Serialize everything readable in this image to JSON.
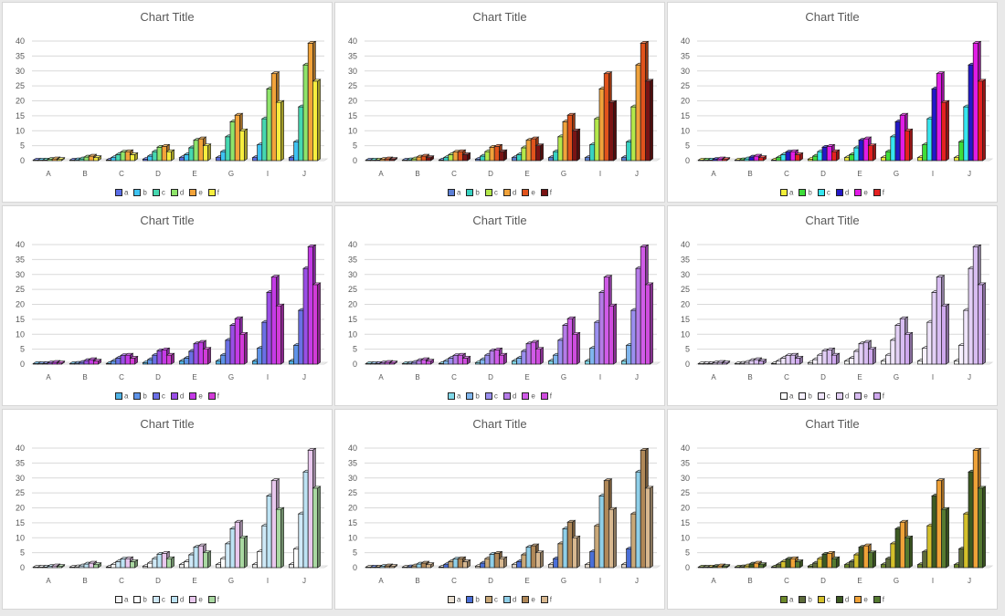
{
  "chart_data": [
    {
      "type": "bar",
      "title": "Chart Title",
      "categories": [
        "A",
        "B",
        "C",
        "D",
        "E",
        "G",
        "I",
        "J"
      ],
      "ylim": [
        0,
        40
      ],
      "yticks": [
        0,
        5,
        10,
        15,
        20,
        25,
        30,
        35,
        40
      ],
      "grid": true,
      "legend": "bottom",
      "series": [
        {
          "name": "a",
          "values": [
            0,
            0,
            0.2,
            0.5,
            1,
            1,
            1,
            1
          ]
        },
        {
          "name": "b",
          "values": [
            0.1,
            0.3,
            1,
            1.5,
            2,
            3,
            5.3,
            6.3
          ]
        },
        {
          "name": "c",
          "values": [
            0.2,
            0.6,
            2,
            3,
            4.3,
            8,
            14,
            18
          ]
        },
        {
          "name": "d",
          "values": [
            0.4,
            1.2,
            2.9,
            4.5,
            6.8,
            13,
            24,
            32
          ]
        },
        {
          "name": "e",
          "values": [
            0.6,
            1.5,
            3,
            4.8,
            7.3,
            15.2,
            29.1,
            39.3
          ]
        },
        {
          "name": "f",
          "values": [
            0.4,
            1,
            2,
            3,
            5,
            10,
            19.5,
            26.6
          ]
        }
      ],
      "colors": [
        "#5b6ee8",
        "#3ec3f2",
        "#46d8b0",
        "#8ee46a",
        "#f2a33a",
        "#f7ee3e"
      ]
    },
    {
      "type": "bar",
      "title": "Chart Title",
      "categories": [
        "A",
        "B",
        "C",
        "D",
        "E",
        "G",
        "I",
        "J"
      ],
      "ylim": [
        0,
        40
      ],
      "yticks": [
        0,
        5,
        10,
        15,
        20,
        25,
        30,
        35,
        40
      ],
      "grid": true,
      "legend": "bottom",
      "series": [
        {
          "name": "a",
          "values": [
            0,
            0,
            0.2,
            0.5,
            1,
            1,
            1,
            1
          ]
        },
        {
          "name": "b",
          "values": [
            0.1,
            0.3,
            1,
            1.5,
            2,
            3,
            5.3,
            6.3
          ]
        },
        {
          "name": "c",
          "values": [
            0.2,
            0.6,
            2,
            3,
            4.3,
            8,
            14,
            18
          ]
        },
        {
          "name": "d",
          "values": [
            0.4,
            1.2,
            2.9,
            4.5,
            6.8,
            13,
            24,
            32
          ]
        },
        {
          "name": "e",
          "values": [
            0.6,
            1.5,
            3,
            4.8,
            7.3,
            15.2,
            29.1,
            39.3
          ]
        },
        {
          "name": "f",
          "values": [
            0.4,
            1,
            2,
            3,
            5,
            10,
            19.5,
            26.6
          ]
        }
      ],
      "colors": [
        "#5b7fd6",
        "#37d2c2",
        "#b4e84a",
        "#f0a23a",
        "#e1531c",
        "#7a1414"
      ]
    },
    {
      "type": "bar",
      "title": "Chart Title",
      "categories": [
        "A",
        "B",
        "C",
        "D",
        "E",
        "G",
        "I",
        "J"
      ],
      "ylim": [
        0,
        40
      ],
      "yticks": [
        0,
        5,
        10,
        15,
        20,
        25,
        30,
        35,
        40
      ],
      "grid": true,
      "legend": "bottom",
      "series": [
        {
          "name": "a",
          "values": [
            0,
            0,
            0.2,
            0.5,
            1,
            1,
            1,
            1
          ]
        },
        {
          "name": "b",
          "values": [
            0.1,
            0.3,
            1,
            1.5,
            2,
            3,
            5.3,
            6.3
          ]
        },
        {
          "name": "c",
          "values": [
            0.2,
            0.6,
            2,
            3,
            4.3,
            8,
            14,
            18
          ]
        },
        {
          "name": "d",
          "values": [
            0.4,
            1.2,
            2.9,
            4.5,
            6.8,
            13,
            24,
            32
          ]
        },
        {
          "name": "e",
          "values": [
            0.6,
            1.5,
            3,
            4.8,
            7.3,
            15.2,
            29.1,
            39.3
          ]
        },
        {
          "name": "f",
          "values": [
            0.4,
            1,
            2,
            3,
            5,
            10,
            19.5,
            26.6
          ]
        }
      ],
      "colors": [
        "#f2ef3a",
        "#3edc3a",
        "#36e6f0",
        "#2318c8",
        "#e21be6",
        "#e52121"
      ]
    },
    {
      "type": "bar",
      "title": "Chart Title",
      "categories": [
        "A",
        "B",
        "C",
        "D",
        "E",
        "G",
        "I",
        "J"
      ],
      "ylim": [
        0,
        40
      ],
      "yticks": [
        0,
        5,
        10,
        15,
        20,
        25,
        30,
        35,
        40
      ],
      "grid": true,
      "legend": "bottom",
      "series": [
        {
          "name": "a",
          "values": [
            0,
            0,
            0.2,
            0.5,
            1,
            1,
            1,
            1
          ]
        },
        {
          "name": "b",
          "values": [
            0.1,
            0.3,
            1,
            1.5,
            2,
            3,
            5.3,
            6.3
          ]
        },
        {
          "name": "c",
          "values": [
            0.2,
            0.6,
            2,
            3,
            4.3,
            8,
            14,
            18
          ]
        },
        {
          "name": "d",
          "values": [
            0.4,
            1.2,
            2.9,
            4.5,
            6.8,
            13,
            24,
            32
          ]
        },
        {
          "name": "e",
          "values": [
            0.6,
            1.5,
            3,
            4.8,
            7.3,
            15.2,
            29.1,
            39.3
          ]
        },
        {
          "name": "f",
          "values": [
            0.4,
            1,
            2,
            3,
            5,
            10,
            19.5,
            26.6
          ]
        }
      ],
      "colors": [
        "#4fb3e6",
        "#5e93e8",
        "#6b6fe6",
        "#9a4ee6",
        "#c43ae6",
        "#d23bd8"
      ]
    },
    {
      "type": "bar",
      "title": "Chart Title",
      "categories": [
        "A",
        "B",
        "C",
        "D",
        "E",
        "G",
        "I",
        "J"
      ],
      "ylim": [
        0,
        40
      ],
      "yticks": [
        0,
        5,
        10,
        15,
        20,
        25,
        30,
        35,
        40
      ],
      "grid": true,
      "legend": "bottom",
      "series": [
        {
          "name": "a",
          "values": [
            0,
            0,
            0.2,
            0.5,
            1,
            1,
            1,
            1
          ]
        },
        {
          "name": "b",
          "values": [
            0.1,
            0.3,
            1,
            1.5,
            2,
            3,
            5.3,
            6.3
          ]
        },
        {
          "name": "c",
          "values": [
            0.2,
            0.6,
            2,
            3,
            4.3,
            8,
            14,
            18
          ]
        },
        {
          "name": "d",
          "values": [
            0.4,
            1.2,
            2.9,
            4.5,
            6.8,
            13,
            24,
            32
          ]
        },
        {
          "name": "e",
          "values": [
            0.6,
            1.5,
            3,
            4.8,
            7.3,
            15.2,
            29.1,
            39.3
          ]
        },
        {
          "name": "f",
          "values": [
            0.4,
            1,
            2,
            3,
            5,
            10,
            19.5,
            26.6
          ]
        }
      ],
      "colors": [
        "#7fd8e8",
        "#7fb6ee",
        "#9b8ff0",
        "#b57be8",
        "#d05be8",
        "#cf4cde"
      ]
    },
    {
      "type": "bar",
      "title": "Chart Title",
      "categories": [
        "A",
        "B",
        "C",
        "D",
        "E",
        "G",
        "I",
        "J"
      ],
      "ylim": [
        0,
        40
      ],
      "yticks": [
        0,
        5,
        10,
        15,
        20,
        25,
        30,
        35,
        40
      ],
      "grid": true,
      "legend": "bottom",
      "series": [
        {
          "name": "a",
          "values": [
            0,
            0,
            0.2,
            0.5,
            1,
            1,
            1,
            1
          ]
        },
        {
          "name": "b",
          "values": [
            0.1,
            0.3,
            1,
            1.5,
            2,
            3,
            5.3,
            6.3
          ]
        },
        {
          "name": "c",
          "values": [
            0.2,
            0.6,
            2,
            3,
            4.3,
            8,
            14,
            18
          ]
        },
        {
          "name": "d",
          "values": [
            0.4,
            1.2,
            2.9,
            4.5,
            6.8,
            13,
            24,
            32
          ]
        },
        {
          "name": "e",
          "values": [
            0.6,
            1.5,
            3,
            4.8,
            7.3,
            15.2,
            29.1,
            39.3
          ]
        },
        {
          "name": "f",
          "values": [
            0.4,
            1,
            2,
            3,
            5,
            10,
            19.5,
            26.6
          ]
        }
      ],
      "colors": [
        "#ffffff",
        "#f6f0ff",
        "#efe4fb",
        "#e3d0f6",
        "#d8bdf2",
        "#cfa8ee"
      ]
    },
    {
      "type": "bar",
      "title": "Chart Title",
      "categories": [
        "A",
        "B",
        "C",
        "D",
        "E",
        "G",
        "I",
        "J"
      ],
      "ylim": [
        0,
        40
      ],
      "yticks": [
        0,
        5,
        10,
        15,
        20,
        25,
        30,
        35,
        40
      ],
      "grid": true,
      "legend": "bottom",
      "series": [
        {
          "name": "a",
          "values": [
            0,
            0,
            0.2,
            0.5,
            1,
            1,
            1,
            1
          ]
        },
        {
          "name": "b",
          "values": [
            0.1,
            0.3,
            1,
            1.5,
            2,
            3,
            5.3,
            6.3
          ]
        },
        {
          "name": "c",
          "values": [
            0.2,
            0.6,
            2,
            3,
            4.3,
            8,
            14,
            18
          ]
        },
        {
          "name": "d",
          "values": [
            0.4,
            1.2,
            2.9,
            4.5,
            6.8,
            13,
            24,
            32
          ]
        },
        {
          "name": "e",
          "values": [
            0.6,
            1.5,
            3,
            4.8,
            7.3,
            15.2,
            29.1,
            39.3
          ]
        },
        {
          "name": "f",
          "values": [
            0.4,
            1,
            2,
            3,
            5,
            10,
            19.5,
            26.6
          ]
        }
      ],
      "colors": [
        "#f4f4f4",
        "#ffffff",
        "#cfe9f7",
        "#bde3f4",
        "#e9c8ee",
        "#a9d8a1"
      ]
    },
    {
      "type": "bar",
      "title": "Chart Title",
      "categories": [
        "A",
        "B",
        "C",
        "D",
        "E",
        "G",
        "I",
        "J"
      ],
      "ylim": [
        0,
        40
      ],
      "yticks": [
        0,
        5,
        10,
        15,
        20,
        25,
        30,
        35,
        40
      ],
      "grid": true,
      "legend": "bottom",
      "series": [
        {
          "name": "a",
          "values": [
            0,
            0,
            0.2,
            0.5,
            1,
            1,
            1,
            1
          ]
        },
        {
          "name": "b",
          "values": [
            0.1,
            0.3,
            1,
            1.5,
            2,
            3,
            5.3,
            6.3
          ]
        },
        {
          "name": "c",
          "values": [
            0.2,
            0.6,
            2,
            3,
            4.3,
            8,
            14,
            18
          ]
        },
        {
          "name": "d",
          "values": [
            0.4,
            1.2,
            2.9,
            4.5,
            6.8,
            13,
            24,
            32
          ]
        },
        {
          "name": "e",
          "values": [
            0.6,
            1.5,
            3,
            4.8,
            7.3,
            15.2,
            29.1,
            39.3
          ]
        },
        {
          "name": "f",
          "values": [
            0.4,
            1,
            2,
            3,
            5,
            10,
            19.5,
            26.6
          ]
        }
      ],
      "colors": [
        "#e8ded0",
        "#4a6fd8",
        "#c9a878",
        "#8fcfe8",
        "#b08858",
        "#d8b890"
      ]
    },
    {
      "type": "bar",
      "title": "Chart Title",
      "categories": [
        "A",
        "B",
        "C",
        "D",
        "E",
        "G",
        "I",
        "J"
      ],
      "ylim": [
        0,
        40
      ],
      "yticks": [
        0,
        5,
        10,
        15,
        20,
        25,
        30,
        35,
        40
      ],
      "grid": true,
      "legend": "bottom",
      "series": [
        {
          "name": "a",
          "values": [
            0,
            0,
            0.2,
            0.5,
            1,
            1,
            1,
            1
          ]
        },
        {
          "name": "b",
          "values": [
            0.1,
            0.3,
            1,
            1.5,
            2,
            3,
            5.3,
            6.3
          ]
        },
        {
          "name": "c",
          "values": [
            0.2,
            0.6,
            2,
            3,
            4.3,
            8,
            14,
            18
          ]
        },
        {
          "name": "d",
          "values": [
            0.4,
            1.2,
            2.9,
            4.5,
            6.8,
            13,
            24,
            32
          ]
        },
        {
          "name": "e",
          "values": [
            0.6,
            1.5,
            3,
            4.8,
            7.3,
            15.2,
            29.1,
            39.3
          ]
        },
        {
          "name": "f",
          "values": [
            0.4,
            1,
            2,
            3,
            5,
            10,
            19.5,
            26.6
          ]
        }
      ],
      "colors": [
        "#6e8a2a",
        "#5d6b3a",
        "#d4c02a",
        "#3d5a22",
        "#f0a238",
        "#557a30"
      ]
    }
  ]
}
